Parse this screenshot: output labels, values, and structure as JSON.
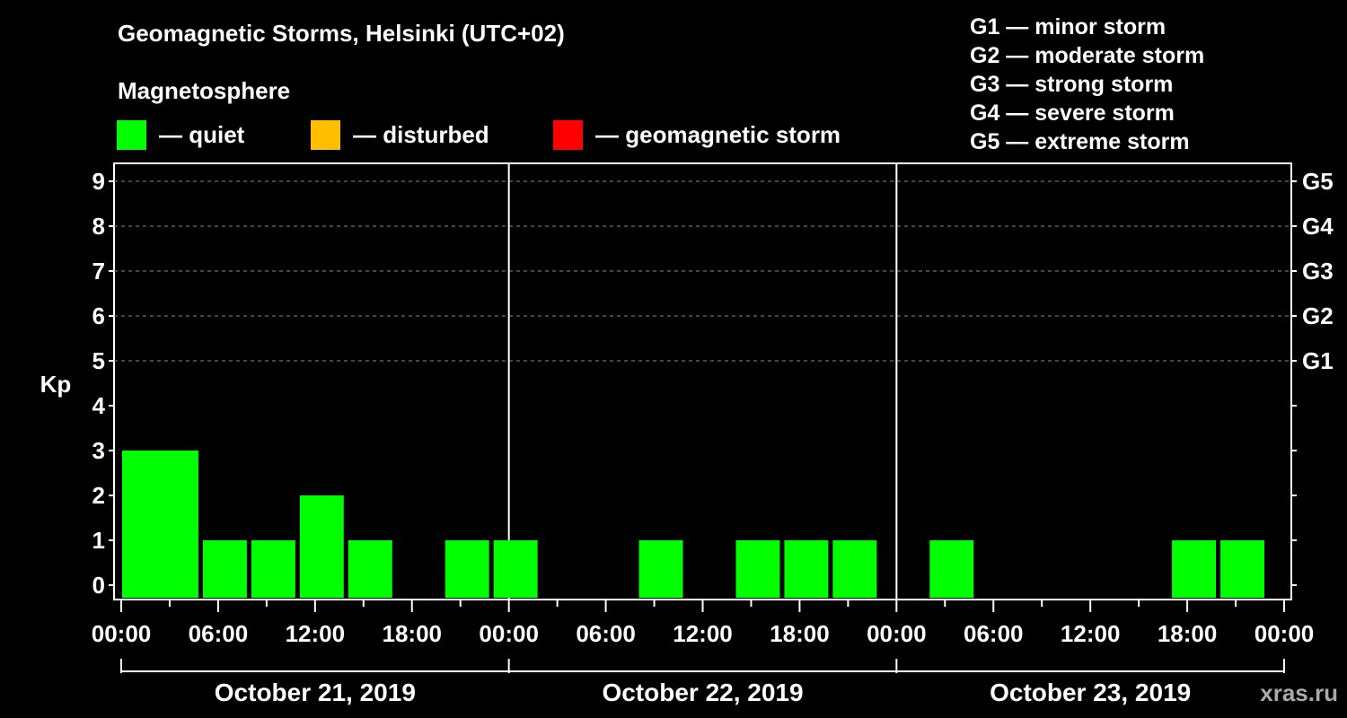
{
  "header": {
    "title": "Geomagnetic Storms, Helsinki (UTC+02)",
    "subtitle": "Magnetosphere"
  },
  "legend": {
    "quiet": {
      "label": "— quiet",
      "color": "#00ff00"
    },
    "disturbed": {
      "label": "— disturbed",
      "color": "#ffbf00"
    },
    "storm": {
      "label": "— geomagnetic storm",
      "color": "#ff0000"
    }
  },
  "storm_scale": [
    "G1 — minor storm",
    "G2 — moderate storm",
    "G3 — strong storm",
    "G4 — severe storm",
    "G5 — extreme storm"
  ],
  "watermark": "xras.ru",
  "chart_data": {
    "type": "bar",
    "title": "Geomagnetic Storms, Helsinki (UTC+02)",
    "ylabel": "Kp",
    "ylim": [
      0,
      9
    ],
    "y_ticks": [
      "0",
      "1",
      "2",
      "3",
      "4",
      "5",
      "6",
      "7",
      "8",
      "9"
    ],
    "right_axis_labels": [
      {
        "kp": 5,
        "label": "G1"
      },
      {
        "kp": 6,
        "label": "G2"
      },
      {
        "kp": 7,
        "label": "G3"
      },
      {
        "kp": 8,
        "label": "G4"
      },
      {
        "kp": 9,
        "label": "G5"
      }
    ],
    "x_range_hours": [
      0,
      72
    ],
    "x_tick_labels": [
      "00:00",
      "06:00",
      "12:00",
      "18:00",
      "00:00",
      "06:00",
      "12:00",
      "18:00",
      "00:00",
      "06:00",
      "12:00",
      "18:00",
      "00:00"
    ],
    "days": [
      "October 21, 2019",
      "October 22, 2019",
      "October 23, 2019"
    ],
    "bar_color": "#00ff00",
    "bars": [
      {
        "start_h": 0,
        "kp": 3
      },
      {
        "start_h": 2,
        "kp": 3
      },
      {
        "start_h": 5,
        "kp": 1
      },
      {
        "start_h": 8,
        "kp": 1
      },
      {
        "start_h": 11,
        "kp": 2
      },
      {
        "start_h": 14,
        "kp": 1
      },
      {
        "start_h": 17,
        "kp": 0
      },
      {
        "start_h": 20,
        "kp": 1
      },
      {
        "start_h": 23,
        "kp": 1
      },
      {
        "start_h": 26,
        "kp": 0
      },
      {
        "start_h": 29,
        "kp": 0
      },
      {
        "start_h": 32,
        "kp": 1
      },
      {
        "start_h": 35,
        "kp": 0
      },
      {
        "start_h": 38,
        "kp": 1
      },
      {
        "start_h": 41,
        "kp": 1
      },
      {
        "start_h": 44,
        "kp": 1
      },
      {
        "start_h": 47,
        "kp": 0
      },
      {
        "start_h": 50,
        "kp": 1
      },
      {
        "start_h": 53,
        "kp": 0
      },
      {
        "start_h": 56,
        "kp": 0
      },
      {
        "start_h": 59,
        "kp": 0
      },
      {
        "start_h": 62,
        "kp": 0
      },
      {
        "start_h": 65,
        "kp": 1
      },
      {
        "start_h": 68,
        "kp": 1
      }
    ]
  }
}
